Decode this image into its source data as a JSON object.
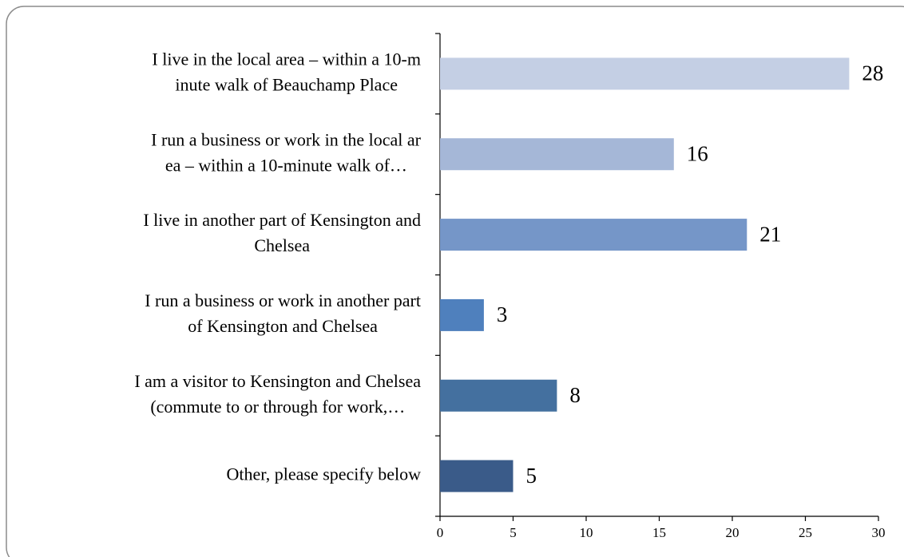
{
  "chart_data": {
    "type": "barh",
    "categories": [
      [
        "I live in the local area – within a 10-m",
        "inute walk of Beauchamp Place"
      ],
      [
        "I run a business or work in the local ar",
        "ea – within a 10-minute walk of…"
      ],
      [
        "I live in another part of Kensington and",
        "Chelsea"
      ],
      [
        "I run a business or work in another part",
        "of Kensington and Chelsea"
      ],
      [
        "I am a visitor to Kensington and Chelsea",
        "(commute to or through for work,…"
      ],
      [
        "Other, please specify below"
      ]
    ],
    "values": [
      28,
      16,
      21,
      3,
      8,
      5
    ],
    "colors": [
      "#c4cfe4",
      "#a5b7d7",
      "#7596c8",
      "#4f80bd",
      "#44709f",
      "#3a5b89"
    ],
    "xlim": [
      0,
      30
    ],
    "xticks": [
      0,
      5,
      10,
      15,
      20,
      25,
      30
    ]
  }
}
